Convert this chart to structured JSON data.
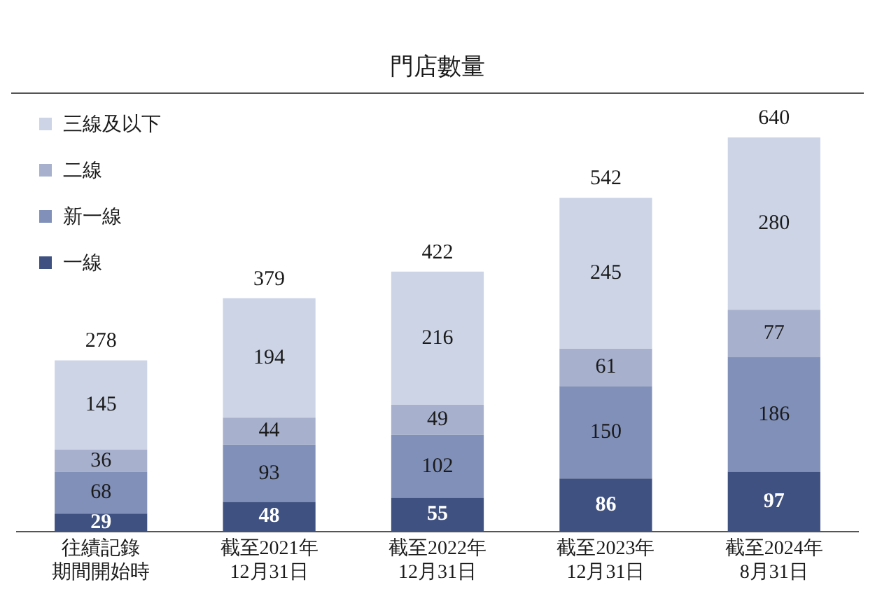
{
  "chart_data": {
    "type": "bar",
    "title": "門店數量",
    "categories": [
      "往績記錄期間開始時",
      "截至2021年12月31日",
      "截至2022年12月31日",
      "截至2023年12月31日",
      "截至2024年8月31日"
    ],
    "stacked": true,
    "data_labels": true,
    "legend": "top left",
    "grid": false,
    "series": [
      {
        "name": "一線",
        "color": "#3f5181",
        "values": [
          29,
          48,
          55,
          86,
          97
        ]
      },
      {
        "name": "新一線",
        "color": "#8090b9",
        "values": [
          68,
          93,
          102,
          150,
          186
        ]
      },
      {
        "name": "二線",
        "color": "#a7b0cc",
        "values": [
          36,
          44,
          49,
          61,
          77
        ]
      },
      {
        "name": "三線及以下",
        "color": "#ccd4e6",
        "values": [
          145,
          194,
          216,
          245,
          280
        ]
      }
    ],
    "totals": [
      "278",
      "379",
      "422",
      "542",
      "640"
    ]
  }
}
